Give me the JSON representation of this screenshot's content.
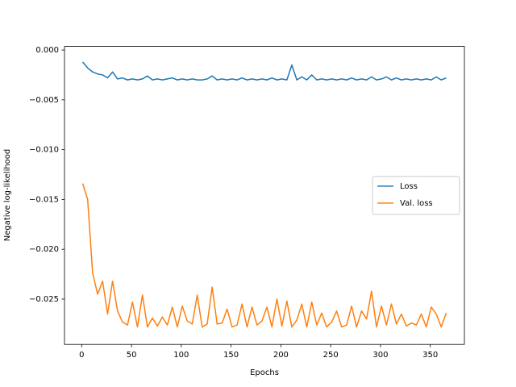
{
  "chart_data": {
    "type": "line",
    "xlabel": "Epochs",
    "ylabel": "Negative log-likelihood",
    "x": [
      1,
      6,
      11,
      16,
      21,
      26,
      31,
      36,
      41,
      46,
      51,
      56,
      61,
      66,
      71,
      76,
      81,
      86,
      91,
      96,
      101,
      106,
      111,
      116,
      121,
      126,
      131,
      136,
      141,
      146,
      151,
      156,
      161,
      166,
      171,
      176,
      181,
      186,
      191,
      196,
      201,
      206,
      211,
      216,
      221,
      226,
      231,
      236,
      241,
      246,
      251,
      256,
      261,
      266,
      271,
      276,
      281,
      286,
      291,
      296,
      301,
      306,
      311,
      316,
      321,
      326,
      331,
      336,
      341,
      346,
      351,
      356,
      361,
      366
    ],
    "series": [
      {
        "name": "Loss",
        "color": "#1f77b4",
        "values": [
          -0.0012,
          -0.0018,
          -0.0022,
          -0.0024,
          -0.0025,
          -0.0028,
          -0.0022,
          -0.0029,
          -0.0028,
          -0.003,
          -0.0029,
          -0.003,
          -0.0029,
          -0.0026,
          -0.003,
          -0.0029,
          -0.003,
          -0.0029,
          -0.0028,
          -0.003,
          -0.0029,
          -0.003,
          -0.0029,
          -0.003,
          -0.003,
          -0.0029,
          -0.0026,
          -0.003,
          -0.0029,
          -0.003,
          -0.0029,
          -0.003,
          -0.0028,
          -0.003,
          -0.0029,
          -0.003,
          -0.0029,
          -0.003,
          -0.0028,
          -0.003,
          -0.0029,
          -0.003,
          -0.0015,
          -0.003,
          -0.0027,
          -0.003,
          -0.0025,
          -0.003,
          -0.0029,
          -0.003,
          -0.0029,
          -0.003,
          -0.0029,
          -0.003,
          -0.0028,
          -0.003,
          -0.0029,
          -0.003,
          -0.0027,
          -0.003,
          -0.0029,
          -0.0027,
          -0.003,
          -0.0028,
          -0.003,
          -0.0029,
          -0.003,
          -0.0029,
          -0.003,
          -0.0029,
          -0.003,
          -0.0027,
          -0.003,
          -0.0028
        ]
      },
      {
        "name": "Val. loss",
        "color": "#ff7f0e",
        "values": [
          -0.0134,
          -0.015,
          -0.0224,
          -0.0245,
          -0.0232,
          -0.0265,
          -0.0232,
          -0.0262,
          -0.0273,
          -0.0276,
          -0.0253,
          -0.0278,
          -0.0246,
          -0.0278,
          -0.0269,
          -0.0277,
          -0.0268,
          -0.0276,
          -0.0258,
          -0.0278,
          -0.0257,
          -0.0272,
          -0.0275,
          -0.0246,
          -0.0278,
          -0.0275,
          -0.0238,
          -0.0275,
          -0.0274,
          -0.026,
          -0.0278,
          -0.0276,
          -0.0255,
          -0.0278,
          -0.0258,
          -0.0276,
          -0.0272,
          -0.0258,
          -0.0278,
          -0.025,
          -0.0277,
          -0.0252,
          -0.0278,
          -0.0271,
          -0.0255,
          -0.0278,
          -0.0253,
          -0.0276,
          -0.0264,
          -0.0278,
          -0.0273,
          -0.0262,
          -0.0278,
          -0.0276,
          -0.0257,
          -0.0278,
          -0.0262,
          -0.027,
          -0.0242,
          -0.0278,
          -0.0257,
          -0.0276,
          -0.0255,
          -0.0275,
          -0.0265,
          -0.0277,
          -0.0274,
          -0.0276,
          -0.0265,
          -0.0278,
          -0.0258,
          -0.0265,
          -0.0278,
          -0.0264
        ]
      }
    ],
    "xlim": [
      -17.25,
      384.25
    ],
    "xticks": [
      0,
      50,
      100,
      150,
      200,
      250,
      300,
      350
    ],
    "ylim": [
      -0.02955,
      0.00036
    ],
    "yticks": [
      {
        "value": 0,
        "label": "0.000"
      },
      {
        "value": -0.005,
        "label": "−0.005"
      },
      {
        "value": -0.01,
        "label": "−0.010"
      },
      {
        "value": -0.015,
        "label": "−0.015"
      },
      {
        "value": -0.02,
        "label": "−0.020"
      },
      {
        "value": -0.025,
        "label": "−0.025"
      }
    ],
    "legend": "center right",
    "grid": false
  }
}
